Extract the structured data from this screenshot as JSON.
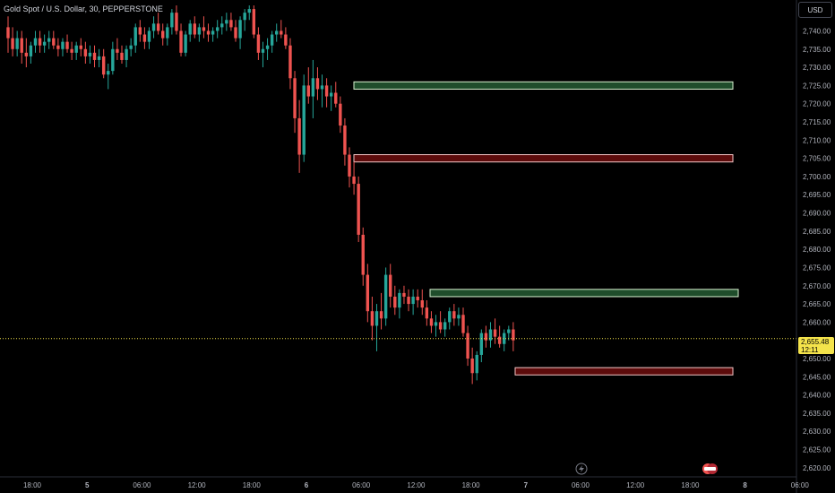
{
  "header": {
    "title": "Gold Spot / U.S. Dollar, 30, PEPPERSTONE"
  },
  "axis": {
    "currency": "USD"
  },
  "last_price": {
    "price": "2,655.48",
    "countdown": "12:11",
    "value": 2655.48
  },
  "colors": {
    "bull": "#26a69a",
    "bear": "#ef5350",
    "background": "#000000",
    "demand_zone": "#1f4d2b",
    "supply_zone": "#5c0b0b",
    "price_line": "#f4e34b"
  },
  "chart_data": {
    "type": "candlestick",
    "ylim": [
      2617.5,
      2747.5
    ],
    "y_ticks": [
      "2,620.00",
      "2,625.00",
      "2,630.00",
      "2,635.00",
      "2,640.00",
      "2,645.00",
      "2,650.00",
      "2,655.00",
      "2,660.00",
      "2,665.00",
      "2,670.00",
      "2,675.00",
      "2,680.00",
      "2,685.00",
      "2,690.00",
      "2,695.00",
      "2,700.00",
      "2,705.00",
      "2,710.00",
      "2,715.00",
      "2,720.00",
      "2,725.00",
      "2,730.00",
      "2,735.00",
      "2,740.00"
    ],
    "x_ticks": [
      {
        "label": "18:00",
        "bold": false
      },
      {
        "label": "5",
        "bold": true
      },
      {
        "label": "06:00",
        "bold": false
      },
      {
        "label": "12:00",
        "bold": false
      },
      {
        "label": "18:00",
        "bold": false
      },
      {
        "label": "6",
        "bold": true
      },
      {
        "label": "06:00",
        "bold": false
      },
      {
        "label": "12:00",
        "bold": false
      },
      {
        "label": "18:00",
        "bold": false
      },
      {
        "label": "7",
        "bold": true
      },
      {
        "label": "06:00",
        "bold": false
      },
      {
        "label": "12:00",
        "bold": false
      },
      {
        "label": "18:00",
        "bold": false
      },
      {
        "label": "8",
        "bold": true
      },
      {
        "label": "06:00",
        "bold": false
      }
    ],
    "candles": [
      [
        2741,
        2744,
        2734,
        2738
      ],
      [
        2738,
        2741,
        2733,
        2735
      ],
      [
        2735,
        2740,
        2733,
        2738
      ],
      [
        2738,
        2740,
        2731,
        2734
      ],
      [
        2734,
        2738,
        2730,
        2733
      ],
      [
        2733,
        2737,
        2731,
        2736
      ],
      [
        2736,
        2740,
        2734,
        2738
      ],
      [
        2738,
        2740,
        2734,
        2736
      ],
      [
        2736,
        2739,
        2734,
        2737
      ],
      [
        2737,
        2740,
        2735,
        2738
      ],
      [
        2738,
        2740,
        2735,
        2736
      ],
      [
        2736,
        2738,
        2733,
        2735
      ],
      [
        2735,
        2738,
        2733,
        2737
      ],
      [
        2737,
        2739,
        2734,
        2735
      ],
      [
        2735,
        2737,
        2732,
        2734
      ],
      [
        2734,
        2737,
        2732,
        2736
      ],
      [
        2736,
        2738,
        2733,
        2735
      ],
      [
        2735,
        2737,
        2731,
        2733
      ],
      [
        2733,
        2736,
        2731,
        2734
      ],
      [
        2734,
        2736,
        2730,
        2732
      ],
      [
        2732,
        2735,
        2730,
        2733
      ],
      [
        2733,
        2735,
        2727,
        2728
      ],
      [
        2728,
        2731,
        2724,
        2729
      ],
      [
        2729,
        2737,
        2728,
        2735
      ],
      [
        2735,
        2738,
        2732,
        2734
      ],
      [
        2734,
        2736,
        2731,
        2732
      ],
      [
        2732,
        2736,
        2730,
        2735
      ],
      [
        2735,
        2738,
        2733,
        2736
      ],
      [
        2736,
        2742,
        2734,
        2741
      ],
      [
        2741,
        2743,
        2737,
        2739
      ],
      [
        2739,
        2741,
        2735,
        2737
      ],
      [
        2737,
        2741,
        2735,
        2740
      ],
      [
        2740,
        2744,
        2738,
        2742
      ],
      [
        2742,
        2745,
        2739,
        2740
      ],
      [
        2740,
        2742,
        2736,
        2738
      ],
      [
        2738,
        2742,
        2736,
        2741
      ],
      [
        2741,
        2746,
        2739,
        2745
      ],
      [
        2745,
        2747,
        2739,
        2740
      ],
      [
        2740,
        2742,
        2733,
        2734
      ],
      [
        2734,
        2740,
        2733,
        2739
      ],
      [
        2739,
        2743,
        2737,
        2742
      ],
      [
        2742,
        2744,
        2738,
        2739
      ],
      [
        2739,
        2742,
        2737,
        2741
      ],
      [
        2741,
        2744,
        2738,
        2740
      ],
      [
        2740,
        2742,
        2737,
        2739
      ],
      [
        2739,
        2741,
        2737,
        2740
      ],
      [
        2740,
        2743,
        2738,
        2741
      ],
      [
        2741,
        2744,
        2739,
        2742
      ],
      [
        2742,
        2745,
        2740,
        2743
      ],
      [
        2743,
        2745,
        2740,
        2741
      ],
      [
        2741,
        2743,
        2737,
        2738
      ],
      [
        2738,
        2744,
        2735,
        2743
      ],
      [
        2743,
        2746,
        2740,
        2745
      ],
      [
        2745,
        2747,
        2743,
        2746
      ],
      [
        2746,
        2747,
        2738,
        2739
      ],
      [
        2739,
        2741,
        2732,
        2734
      ],
      [
        2734,
        2737,
        2730,
        2735
      ],
      [
        2735,
        2738,
        2732,
        2736
      ],
      [
        2736,
        2740,
        2734,
        2739
      ],
      [
        2739,
        2742,
        2737,
        2740
      ],
      [
        2740,
        2743,
        2738,
        2739
      ],
      [
        2739,
        2741,
        2735,
        2736
      ],
      [
        2736,
        2738,
        2724,
        2727
      ],
      [
        2727,
        2729,
        2712,
        2716
      ],
      [
        2716,
        2721,
        2701,
        2706
      ],
      [
        2706,
        2728,
        2704,
        2725
      ],
      [
        2725,
        2730,
        2720,
        2722
      ],
      [
        2722,
        2732,
        2716,
        2727
      ],
      [
        2727,
        2730,
        2721,
        2724
      ],
      [
        2724,
        2728,
        2719,
        2725
      ],
      [
        2725,
        2727,
        2719,
        2722
      ],
      [
        2722,
        2725,
        2718,
        2723
      ],
      [
        2723,
        2726,
        2719,
        2720
      ],
      [
        2720,
        2722,
        2712,
        2714
      ],
      [
        2714,
        2716,
        2703,
        2706
      ],
      [
        2706,
        2708,
        2697,
        2700
      ],
      [
        2700,
        2704,
        2695,
        2698
      ],
      [
        2698,
        2700,
        2682,
        2684
      ],
      [
        2684,
        2686,
        2670,
        2673
      ],
      [
        2673,
        2676,
        2660,
        2663
      ],
      [
        2663,
        2667,
        2655,
        2659
      ],
      [
        2659,
        2665,
        2652,
        2663
      ],
      [
        2663,
        2668,
        2658,
        2661
      ],
      [
        2661,
        2675,
        2659,
        2673
      ],
      [
        2673,
        2676,
        2664,
        2667
      ],
      [
        2667,
        2670,
        2662,
        2664
      ],
      [
        2664,
        2669,
        2661,
        2668
      ],
      [
        2668,
        2670,
        2665,
        2667
      ],
      [
        2667,
        2669,
        2663,
        2665
      ],
      [
        2665,
        2669,
        2662,
        2667
      ],
      [
        2667,
        2669,
        2664,
        2666
      ],
      [
        2666,
        2669,
        2662,
        2664
      ],
      [
        2664,
        2666,
        2659,
        2661
      ],
      [
        2661,
        2663,
        2657,
        2659
      ],
      [
        2659,
        2662,
        2656,
        2660
      ],
      [
        2660,
        2663,
        2657,
        2658
      ],
      [
        2658,
        2661,
        2656,
        2660
      ],
      [
        2660,
        2664,
        2658,
        2663
      ],
      [
        2663,
        2665,
        2659,
        2661
      ],
      [
        2661,
        2664,
        2659,
        2662
      ],
      [
        2662,
        2664,
        2656,
        2657
      ],
      [
        2657,
        2659,
        2648,
        2650
      ],
      [
        2650,
        2653,
        2643,
        2646
      ],
      [
        2646,
        2652,
        2644,
        2651
      ],
      [
        2651,
        2658,
        2649,
        2657
      ],
      [
        2657,
        2659,
        2653,
        2655
      ],
      [
        2655,
        2660,
        2653,
        2658
      ],
      [
        2658,
        2661,
        2654,
        2656
      ],
      [
        2656,
        2659,
        2653,
        2654
      ],
      [
        2654,
        2658,
        2652,
        2657
      ],
      [
        2657,
        2659,
        2655,
        2658
      ],
      [
        2658,
        2660,
        2652,
        2655
      ]
    ],
    "zones": [
      {
        "type": "demand",
        "top": 2726,
        "bottom": 2724
      },
      {
        "type": "supply",
        "top": 2706,
        "bottom": 2704
      },
      {
        "type": "demand",
        "top": 2669,
        "bottom": 2667
      },
      {
        "type": "supply",
        "top": 2647.5,
        "bottom": 2645.5
      }
    ]
  }
}
